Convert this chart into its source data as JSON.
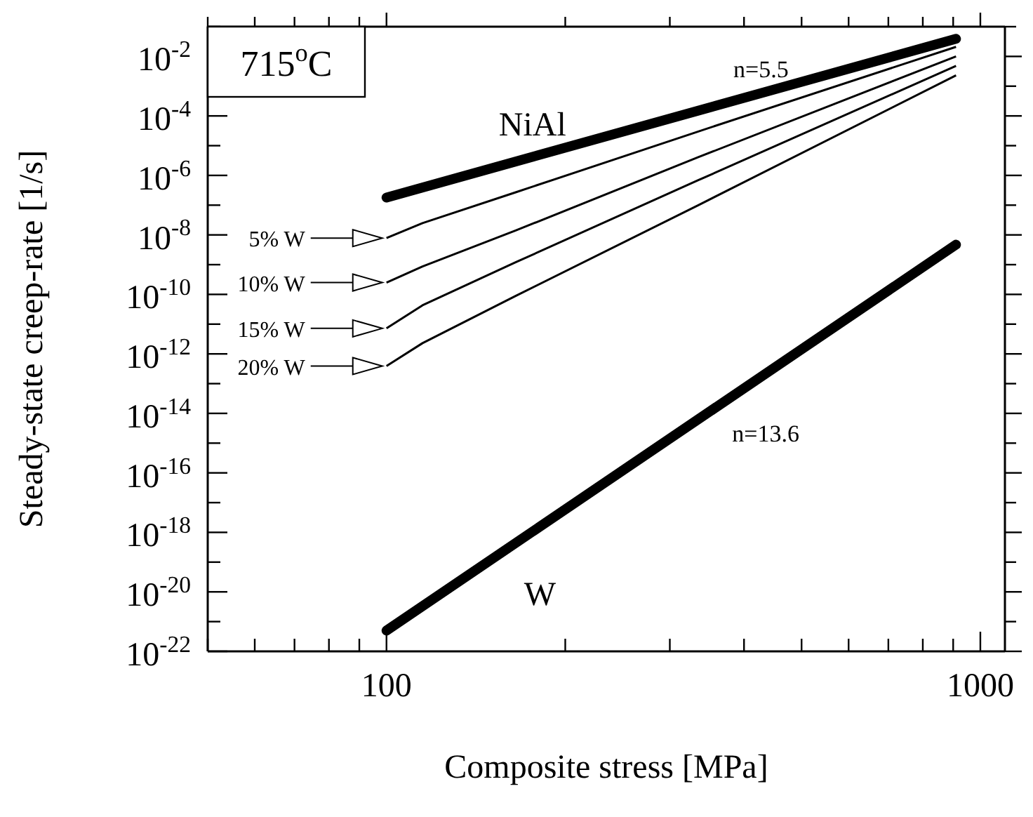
{
  "chart_data": {
    "type": "line",
    "xlabel": "Composite stress [MPa]",
    "ylabel": "Steady-state creep-rate [1/s]",
    "log": "xy",
    "legend": "left",
    "marker": "none",
    "line_style": "solid",
    "xlim": [
      50,
      1100
    ],
    "xticks": [
      {
        "value": 50,
        "label": null
      },
      {
        "value": 60,
        "label": null
      },
      {
        "value": 70,
        "label": null
      },
      {
        "value": 80,
        "label": null
      },
      {
        "value": 90,
        "label": null
      },
      100,
      {
        "value": 200,
        "label": null
      },
      {
        "value": 300,
        "label": null
      },
      {
        "value": 400,
        "label": null
      },
      {
        "value": 500,
        "label": null
      },
      {
        "value": 600,
        "label": null
      },
      {
        "value": 700,
        "label": null
      },
      {
        "value": 800,
        "label": null
      },
      {
        "value": 900,
        "label": null
      },
      1000
    ],
    "ylim": [
      1e-22,
      0.1
    ],
    "yticks": [
      {
        "value": 1e-22,
        "label": "10$^{-22}$"
      },
      {
        "value": 1e-21,
        "label": null
      },
      {
        "value": 1e-20,
        "label": "10$^{-20}$"
      },
      {
        "value": 1e-19,
        "label": null
      },
      {
        "value": 1e-18,
        "label": "10$^{-18}$"
      },
      {
        "value": 1e-17,
        "label": null
      },
      {
        "value": 1e-16,
        "label": "10$^{-16}$"
      },
      {
        "value": 1e-15,
        "label": null
      },
      {
        "value": 1e-14,
        "label": "10$^{-14}$"
      },
      {
        "value": 1e-13,
        "label": null
      },
      {
        "value": 1e-12,
        "label": "10$^{-12}$"
      },
      {
        "value": 1e-11,
        "label": null
      },
      {
        "value": 1e-10,
        "label": "10$^{-10}$"
      },
      {
        "value": 1e-09,
        "label": null
      },
      {
        "value": 1e-08,
        "label": "10$^{-8}$"
      },
      {
        "value": 1e-07,
        "label": null
      },
      {
        "value": 1e-06,
        "label": "10$^{-6}$"
      },
      {
        "value": 1e-05,
        "label": null
      },
      {
        "value": 0.0001,
        "label": "10$^{-4}$"
      },
      {
        "value": 0.001,
        "label": null
      },
      {
        "value": 0.01,
        "label": "10$^{-2}$"
      },
      {
        "value": 0.1,
        "label": null
      }
    ],
    "series": [
      {
        "name": "NiAl",
        "color": "#000000",
        "x": [
          100,
          910
        ],
        "values": [
          1.8e-07,
          0.039
        ]
      },
      {
        "name": "W",
        "color": "#000000",
        "x": [
          100,
          910
        ],
        "values": [
          5e-22,
          4.7e-09
        ]
      },
      {
        "name": "5% W",
        "color": "#000000",
        "x": [
          100,
          115,
          165,
          335,
          910
        ],
        "values": [
          7.8e-09,
          2.5e-08,
          2.7e-07,
          3e-05,
          0.021
        ]
      },
      {
        "name": "10% W",
        "color": "#000000",
        "x": [
          100,
          115,
          165,
          335,
          910
        ],
        "values": [
          2.5e-10,
          8.7e-10,
          1.4e-08,
          4.1e-06,
          0.01
        ]
      },
      {
        "name": "15% W",
        "color": "#000000",
        "x": [
          100,
          115,
          165,
          335,
          910
        ],
        "values": [
          7.2e-12,
          4.3e-11,
          1.2e-09,
          6.9e-07,
          0.0048
        ]
      },
      {
        "name": "20% W",
        "color": "#000000",
        "x": [
          100,
          115,
          165,
          335,
          910
        ],
        "values": [
          3.9e-13,
          2.3e-12,
          8.9e-11,
          1e-07,
          0.0023
        ]
      }
    ],
    "annotations": [
      "715$^{o}$C",
      "n=5.5",
      "n=13.6"
    ]
  }
}
